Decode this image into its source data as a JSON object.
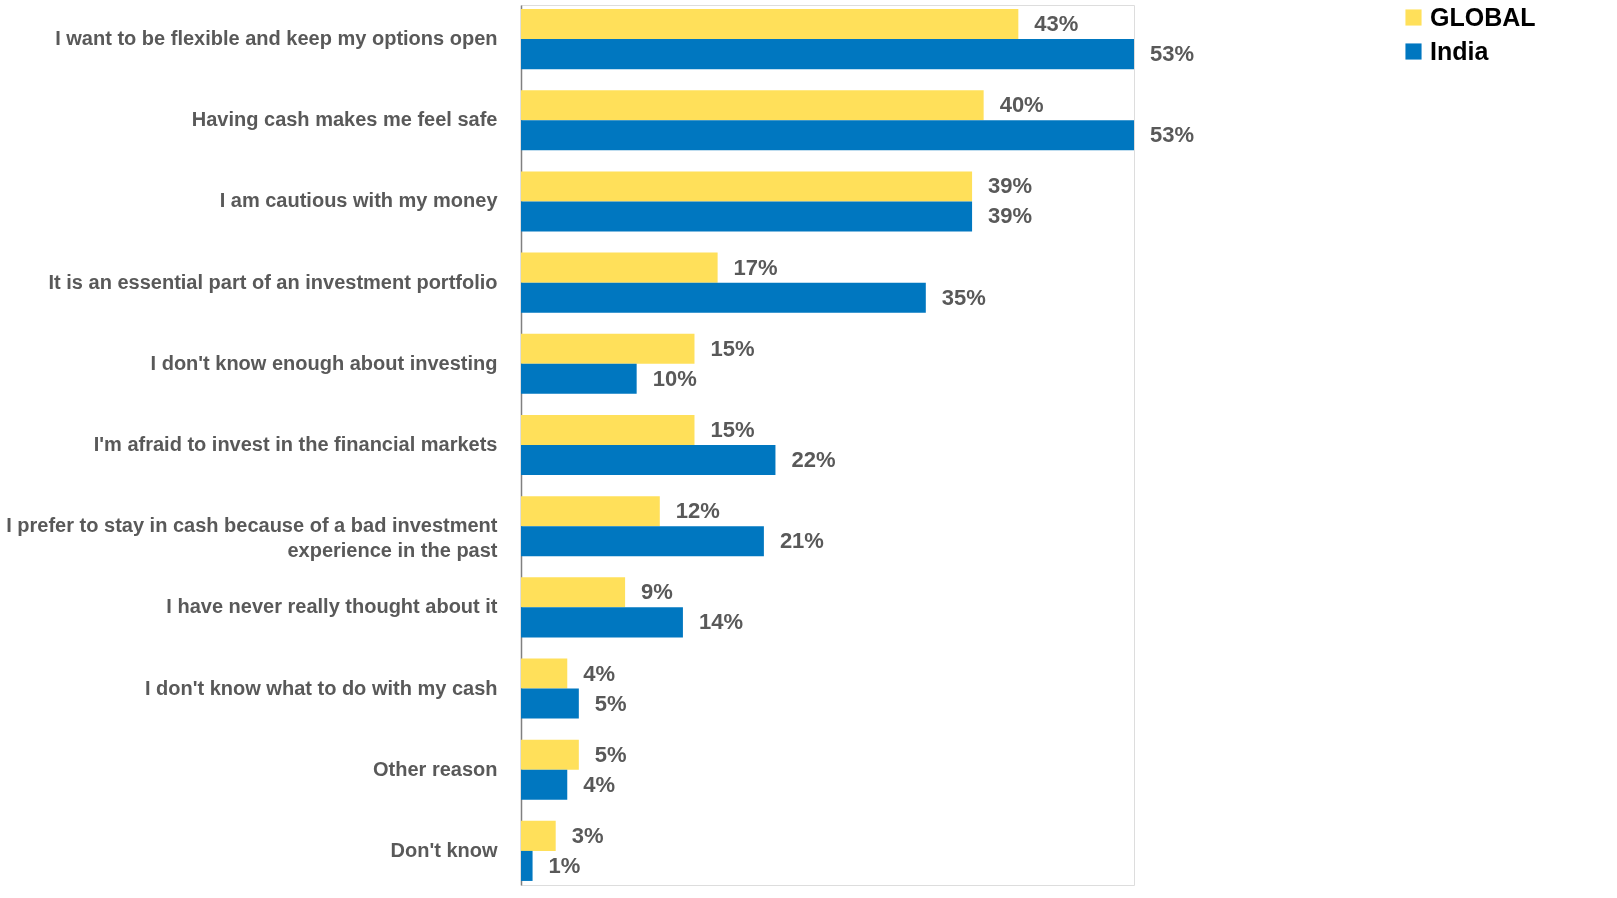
{
  "chart_data": {
    "type": "bar",
    "orientation": "horizontal",
    "data_labels": true,
    "legend": "top right",
    "grid": false,
    "categories": [
      "I want to be flexible and keep my options open",
      "Having cash makes me feel safe",
      "I am cautious with my money",
      "It is an essential part of an investment portfolio",
      "I don't know enough about investing",
      "I'm afraid to invest in the financial markets",
      "I prefer to stay in cash because of a bad investment experience in the past",
      "I have never really thought about it",
      "I don't know what to do with my cash",
      "Other reason",
      "Don't know"
    ],
    "series": [
      {
        "name": "GLOBAL",
        "color": "#ffe05a",
        "values": [
          43,
          40,
          39,
          17,
          15,
          15,
          12,
          9,
          4,
          5,
          3
        ],
        "value_labels": [
          "43%",
          "40%",
          "39%",
          "17%",
          "15%",
          "15%",
          "12%",
          "9%",
          "4%",
          "5%",
          "3%"
        ]
      },
      {
        "name": "India",
        "color": "#0077c0",
        "values": [
          53,
          53,
          39,
          35,
          10,
          22,
          21,
          14,
          5,
          4,
          1
        ],
        "value_labels": [
          "53%",
          "53%",
          "39%",
          "35%",
          "10%",
          "22%",
          "21%",
          "14%",
          "5%",
          "4%",
          "1%"
        ]
      }
    ]
  }
}
